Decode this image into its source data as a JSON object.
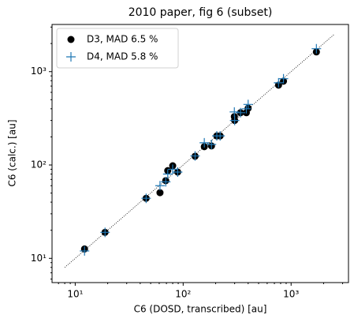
{
  "chart_data": {
    "type": "scatter",
    "title": "2010 paper, fig 6 (subset)",
    "xlabel": "C6 (DOSD, transcribed) [au]",
    "ylabel": "C6 (calc.) [au]",
    "x": [
      12.2,
      18.9,
      45.4,
      61,
      69,
      72,
      80,
      89,
      129,
      157,
      183,
      205,
      220,
      298,
      300,
      340,
      385,
      400,
      765,
      850,
      1715
    ],
    "series": [
      {
        "name": "D3, MAD 6.5 %",
        "color": "#000000",
        "marker": "circle",
        "values": [
          12.6,
          19,
          44,
          50.5,
          68,
          87,
          98,
          84,
          124,
          157,
          160,
          205,
          205,
          330,
          300,
          363,
          363,
          405,
          717,
          790,
          1625
        ]
      },
      {
        "name": "D4, MAD 5.8 %",
        "color": "#1f77b4",
        "marker": "plus",
        "values": [
          12,
          19,
          44,
          60,
          66,
          80,
          90,
          84,
          125,
          173,
          166,
          205,
          205,
          370,
          300,
          363,
          400,
          445,
          760,
          840,
          1760
        ]
      }
    ],
    "reference_line": [
      8,
      2500
    ],
    "xlog": true,
    "ylog": true,
    "xlim": [
      6.1,
      3400
    ],
    "ylim": [
      5.5,
      3200
    ],
    "xticks": [
      {
        "value": 10,
        "label": "10¹"
      },
      {
        "value": 100,
        "label": "10²"
      },
      {
        "value": 1000,
        "label": "10³"
      }
    ],
    "yticks": [
      {
        "value": 10,
        "label": "10¹"
      },
      {
        "value": 100,
        "label": "10²"
      },
      {
        "value": 1000,
        "label": "10³"
      }
    ],
    "xminorticks": [
      7,
      8,
      9,
      20,
      30,
      40,
      50,
      60,
      70,
      80,
      90,
      200,
      300,
      400,
      500,
      600,
      700,
      800,
      900,
      2000,
      3000
    ],
    "yminorticks": [
      6,
      7,
      8,
      9,
      20,
      30,
      40,
      50,
      60,
      70,
      80,
      90,
      200,
      300,
      400,
      500,
      600,
      700,
      800,
      900,
      2000,
      3000
    ],
    "legend": "upper left"
  }
}
